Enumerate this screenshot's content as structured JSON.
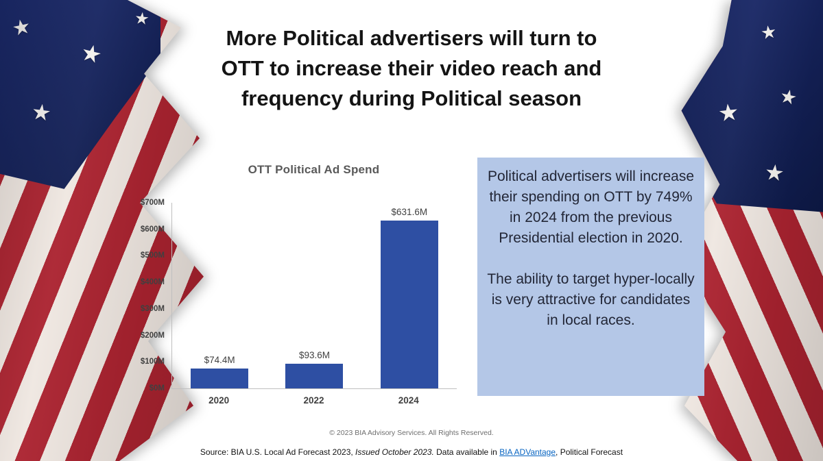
{
  "slide": {
    "title_lines": [
      "More Political advertisers will turn to",
      "OTT to increase their video reach and",
      "frequency during Political season"
    ],
    "copyright": "© 2023 BIA Advisory Services. All Rights Reserved.",
    "source": {
      "prefix": "Source:  BIA U.S. Local Ad Forecast 2023, ",
      "issued": "Issued October 2023.",
      "mid": " Data available in ",
      "link_label": "BIA ADVantage",
      "suffix": ", Political Forecast"
    }
  },
  "callout": {
    "paragraph1": "Political advertisers will increase their spending on OTT by 749% in 2024 from the previous Presidential election in 2020.",
    "paragraph2": "The ability to target hyper-locally is very attractive for candidates in local races."
  },
  "chart_data": {
    "type": "bar",
    "title": "OTT Political Ad Spend",
    "categories": [
      "2020",
      "2022",
      "2024"
    ],
    "values": [
      74.4,
      93.6,
      631.6
    ],
    "data_labels": [
      "$74.4M",
      "$93.6M",
      "$631.6M"
    ],
    "y_ticks": [
      "$700M",
      "$600M",
      "$500M",
      "$400M",
      "$300M",
      "$200M",
      "$100M",
      "$0M"
    ],
    "ylim": [
      0,
      700
    ],
    "xlabel": "",
    "ylabel": "",
    "grid": false,
    "legend": false,
    "bar_color": "#2e4fa3"
  },
  "colors": {
    "callout_bg": "#b4c7e7",
    "link": "#0563c1",
    "flag_red": "#ab2330",
    "flag_white": "#efe7e1",
    "flag_blue": "#1c2b6e"
  },
  "icons": {
    "star": "★"
  }
}
